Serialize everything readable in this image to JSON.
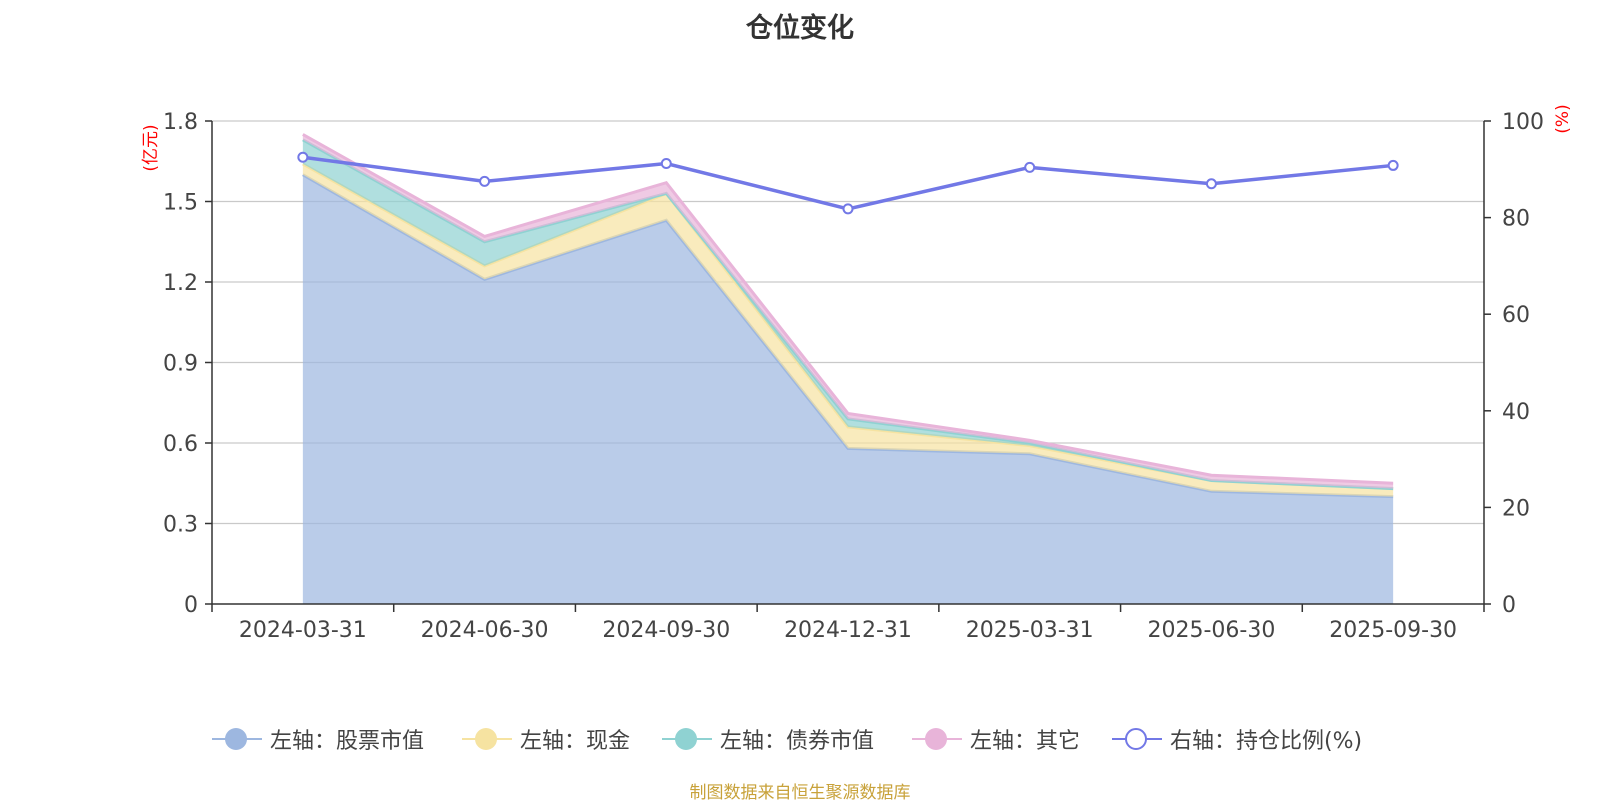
{
  "chart_data": {
    "type": "area",
    "title": "仓位变化",
    "categories": [
      "2024-03-31",
      "2024-06-30",
      "2024-09-30",
      "2024-12-31",
      "2025-03-31",
      "2025-06-30",
      "2025-09-30"
    ],
    "left_axis": {
      "unit": "(亿元)",
      "ylim": [
        0,
        1.8
      ],
      "ticks": [
        "0",
        "0.3",
        "0.6",
        "0.9",
        "1.2",
        "1.5",
        "1.8"
      ]
    },
    "right_axis": {
      "unit": "(%)",
      "ylim": [
        0,
        100
      ],
      "ticks": [
        "0",
        "20",
        "40",
        "60",
        "80",
        "100"
      ]
    },
    "stacked_series": [
      {
        "name": "左轴：股票市值",
        "axis": "left",
        "color": "#9db7e0",
        "values": [
          1.6,
          1.21,
          1.43,
          0.58,
          0.56,
          0.42,
          0.4
        ]
      },
      {
        "name": "左轴：现金",
        "axis": "left",
        "color": "#f6e3a1",
        "values": [
          0.04,
          0.05,
          0.1,
          0.08,
          0.03,
          0.04,
          0.03
        ]
      },
      {
        "name": "左轴：债券市值",
        "axis": "left",
        "color": "#8fd2d2",
        "values": [
          0.09,
          0.09,
          0.0,
          0.03,
          0.01,
          0.0,
          0.0
        ]
      },
      {
        "name": "左轴：其它",
        "axis": "left",
        "color": "#e8b4d9",
        "values": [
          0.02,
          0.02,
          0.04,
          0.02,
          0.01,
          0.02,
          0.02
        ]
      }
    ],
    "line_series": {
      "name": "右轴：持仓比例(%)",
      "axis": "right",
      "color": "#7278e6",
      "values": [
        92.5,
        87.5,
        91.2,
        81.8,
        90.4,
        87.0,
        90.8
      ]
    }
  },
  "source": "制图数据来自恒生聚源数据库"
}
